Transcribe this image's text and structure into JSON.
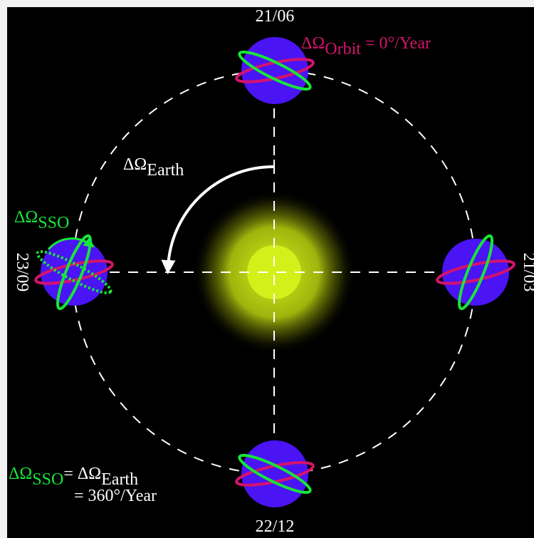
{
  "dates": {
    "top": "21/06",
    "left": "23/09",
    "bottom": "22/12",
    "right": "21/03"
  },
  "labels": {
    "delta_omega": "ΔΩ",
    "orbit_sub": "Orbit",
    "orbit_value": " = 0°/Year",
    "earth_sub": "Earth",
    "sso_sub": "SSO",
    "equation_eq": "= ΔΩ",
    "equation_earth_sub": "Earth",
    "equation_line2": "= 360°/Year"
  },
  "colors": {
    "background": "#000000",
    "planet": "#4a14f5",
    "orbit_ring": "#d4136e",
    "sso_ring": "#17e63a",
    "sun_core": "#d4f01a",
    "orbit_path": "#ffffff",
    "text": "#ffffff"
  }
}
